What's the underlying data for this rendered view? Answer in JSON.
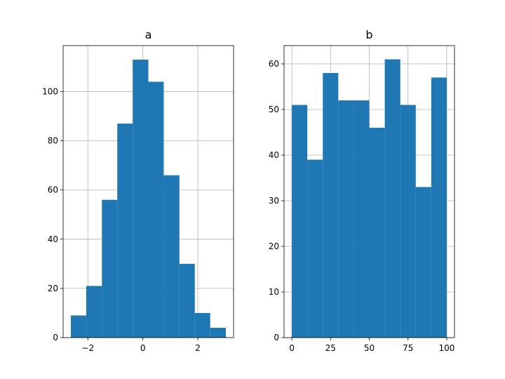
{
  "chart_data": [
    {
      "type": "bar",
      "title": "a",
      "xlabel": "",
      "ylabel": "",
      "bin_edges": [
        -2.62,
        -2.06,
        -1.49,
        -0.93,
        -0.37,
        0.2,
        0.76,
        1.33,
        1.89,
        2.45,
        3.02
      ],
      "values": [
        9,
        21,
        56,
        87,
        113,
        104,
        66,
        30,
        10,
        4
      ],
      "xlim": [
        -2.9,
        3.3
      ],
      "ylim": [
        0,
        118.7
      ],
      "xticks": [
        -2,
        0,
        2
      ],
      "xtick_labels": [
        "−2",
        "0",
        "2"
      ],
      "yticks": [
        0,
        20,
        40,
        60,
        80,
        100
      ],
      "ytick_labels": [
        "0",
        "20",
        "40",
        "60",
        "80",
        "100"
      ],
      "grid": true,
      "color": "#1f77b4"
    },
    {
      "type": "bar",
      "title": "b",
      "xlabel": "",
      "ylabel": "",
      "bin_edges": [
        0,
        10,
        20,
        30,
        40,
        50,
        60,
        70,
        80,
        90,
        100
      ],
      "values": [
        51,
        39,
        58,
        52,
        52,
        46,
        61,
        51,
        33,
        57
      ],
      "xlim": [
        -5,
        105
      ],
      "ylim": [
        0,
        64
      ],
      "xticks": [
        0,
        25,
        50,
        75,
        100
      ],
      "xtick_labels": [
        "0",
        "25",
        "50",
        "75",
        "100"
      ],
      "yticks": [
        0,
        10,
        20,
        30,
        40,
        50,
        60
      ],
      "ytick_labels": [
        "0",
        "10",
        "20",
        "30",
        "40",
        "50",
        "60"
      ],
      "grid": true,
      "color": "#1f77b4"
    }
  ]
}
